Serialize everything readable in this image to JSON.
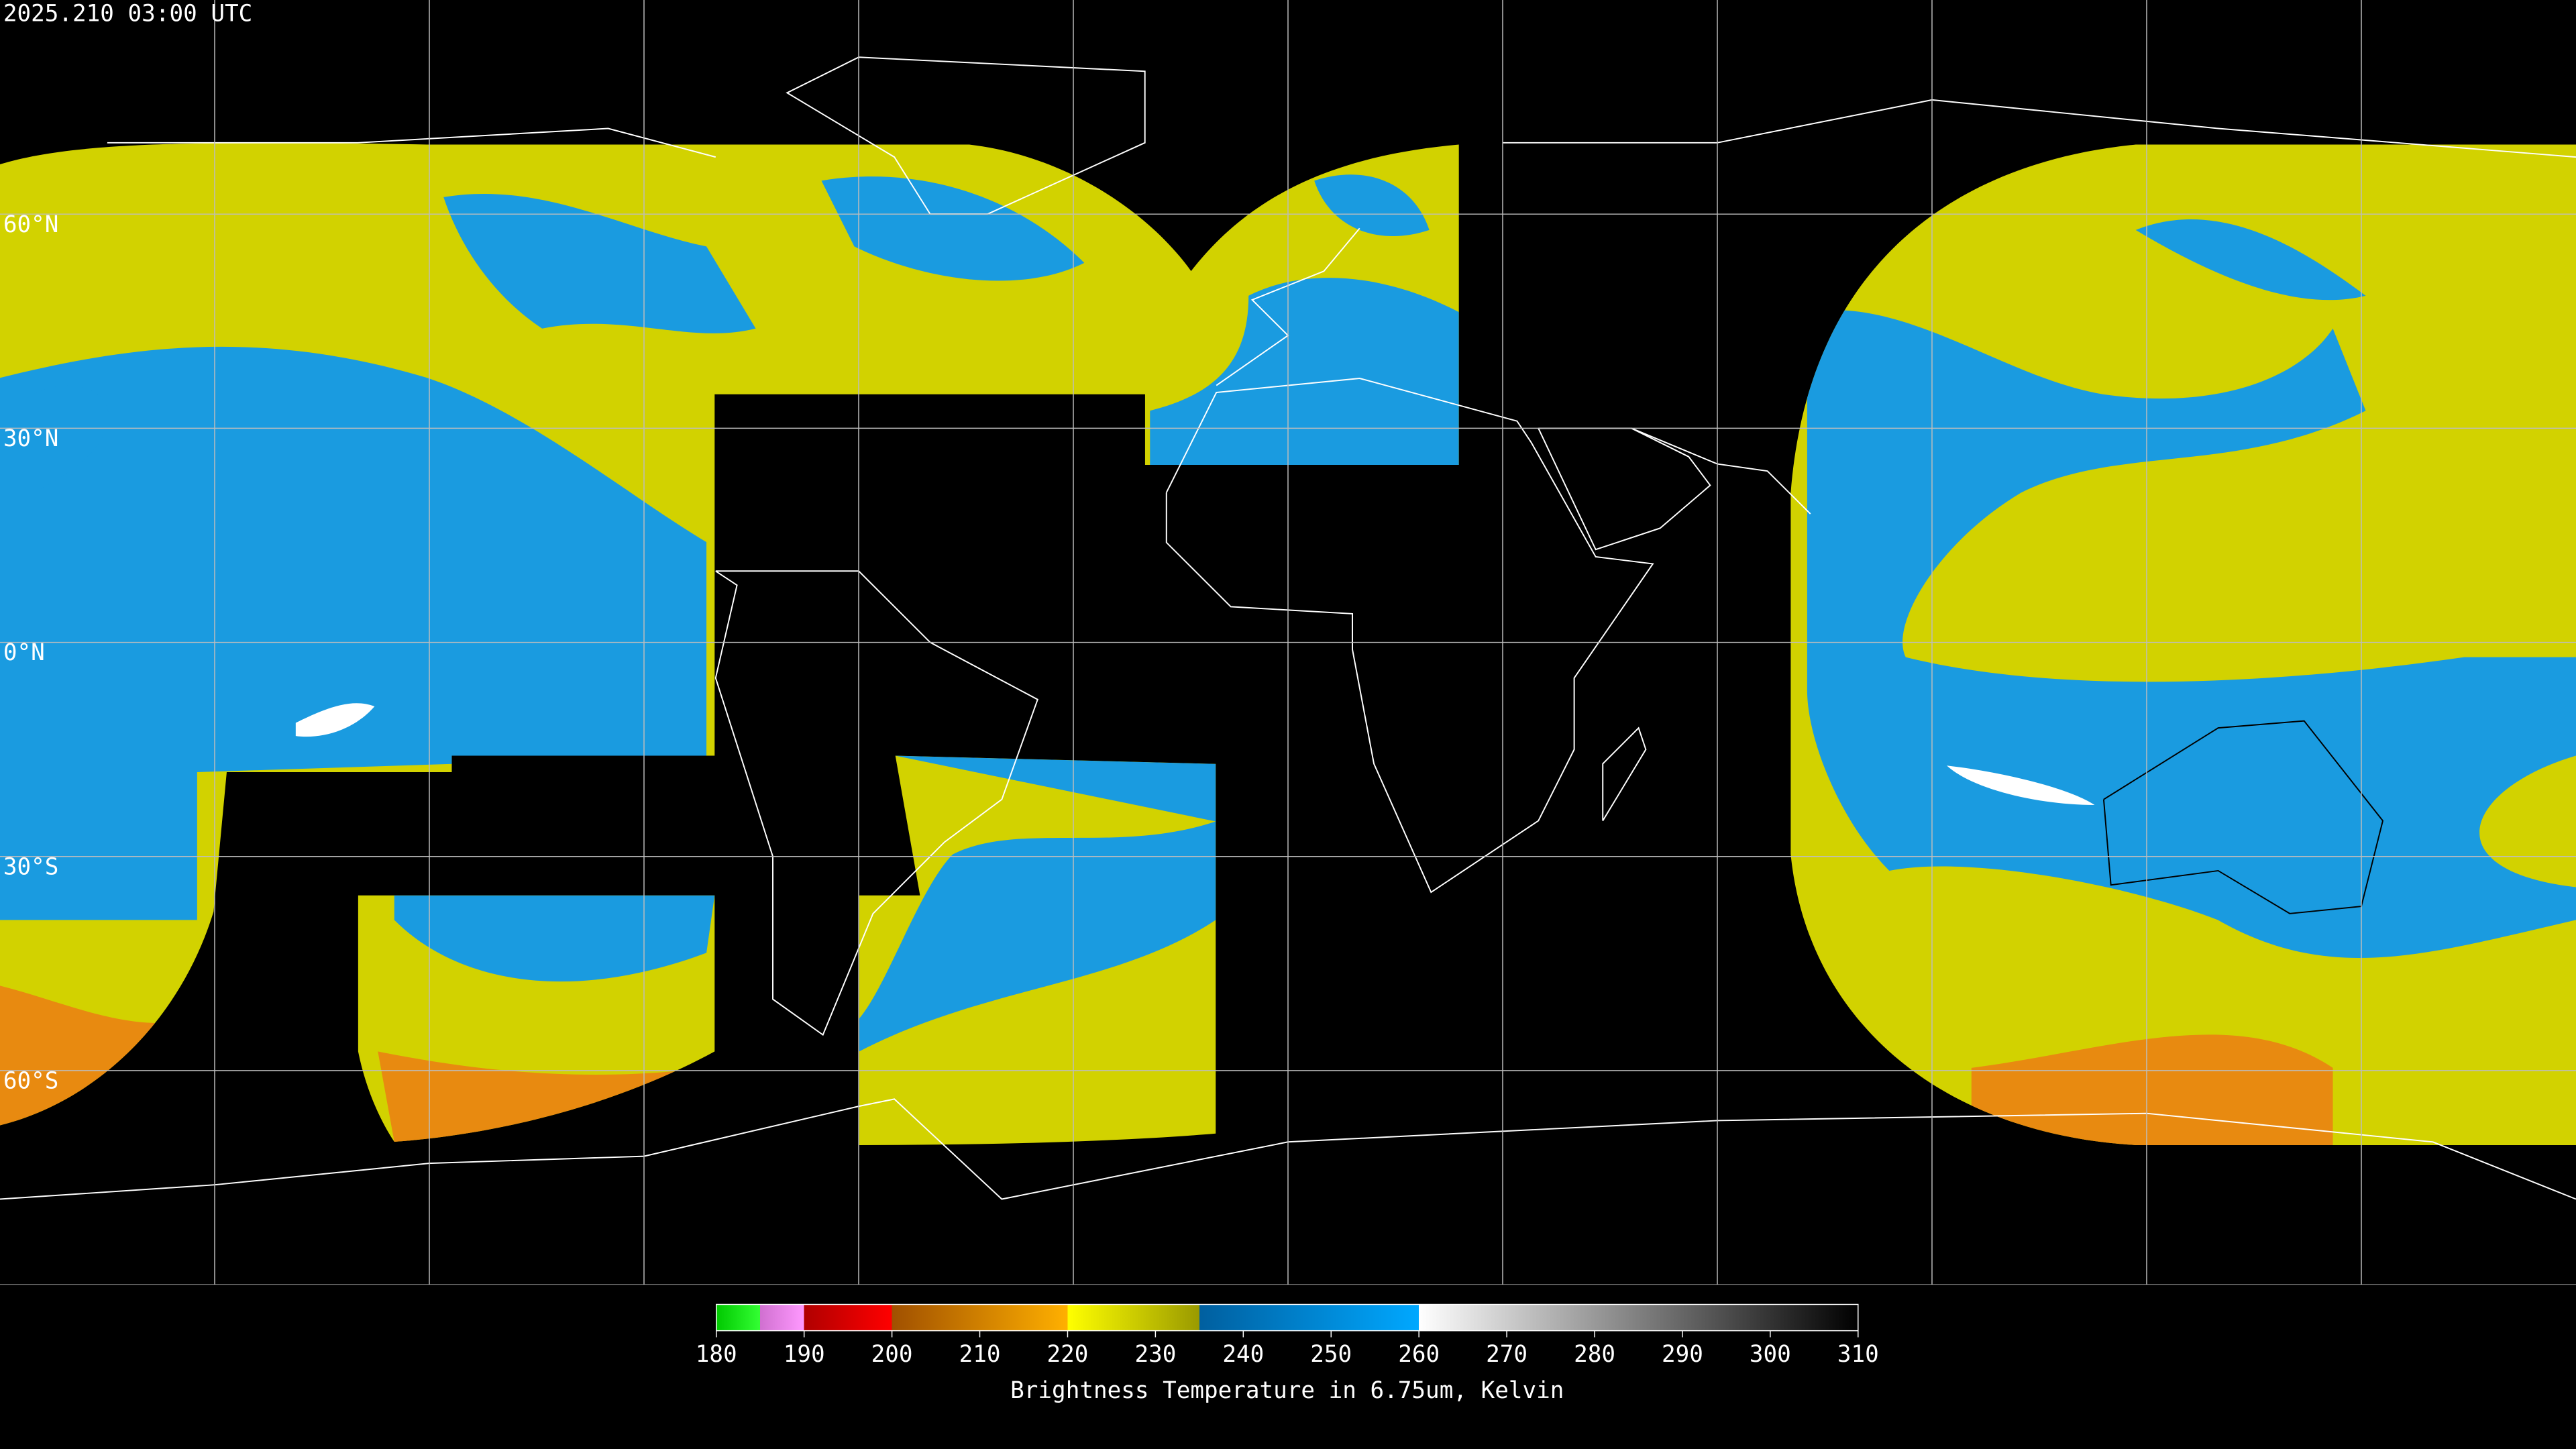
{
  "header": {
    "timestamp": "2025.210 03:00 UTC"
  },
  "map": {
    "latitude_labels": [
      {
        "value": 60,
        "label": "60°N"
      },
      {
        "value": 30,
        "label": "30°N"
      },
      {
        "value": 0,
        "label": "0°N"
      },
      {
        "value": -30,
        "label": "30°S"
      },
      {
        "value": -60,
        "label": "60°S"
      }
    ]
  },
  "colorbar": {
    "label": "Brightness Temperature in 6.75um, Kelvin",
    "range": [
      180,
      310
    ],
    "ticks": [
      180,
      190,
      200,
      210,
      220,
      230,
      240,
      250,
      260,
      270,
      280,
      290,
      300,
      310
    ],
    "stops": [
      {
        "value": 180,
        "color": "#00c800"
      },
      {
        "value": 185,
        "color": "#33ff33"
      },
      {
        "value": 185,
        "color": "#d070d0"
      },
      {
        "value": 190,
        "color": "#ff99ff"
      },
      {
        "value": 190,
        "color": "#b00000"
      },
      {
        "value": 200,
        "color": "#ff0000"
      },
      {
        "value": 200,
        "color": "#a05000"
      },
      {
        "value": 220,
        "color": "#ffb000"
      },
      {
        "value": 220,
        "color": "#ffff00"
      },
      {
        "value": 235,
        "color": "#9a9a00"
      },
      {
        "value": 235,
        "color": "#005f9f"
      },
      {
        "value": 260,
        "color": "#00a8ff"
      },
      {
        "value": 260,
        "color": "#ffffff"
      },
      {
        "value": 310,
        "color": "#000000"
      }
    ]
  }
}
